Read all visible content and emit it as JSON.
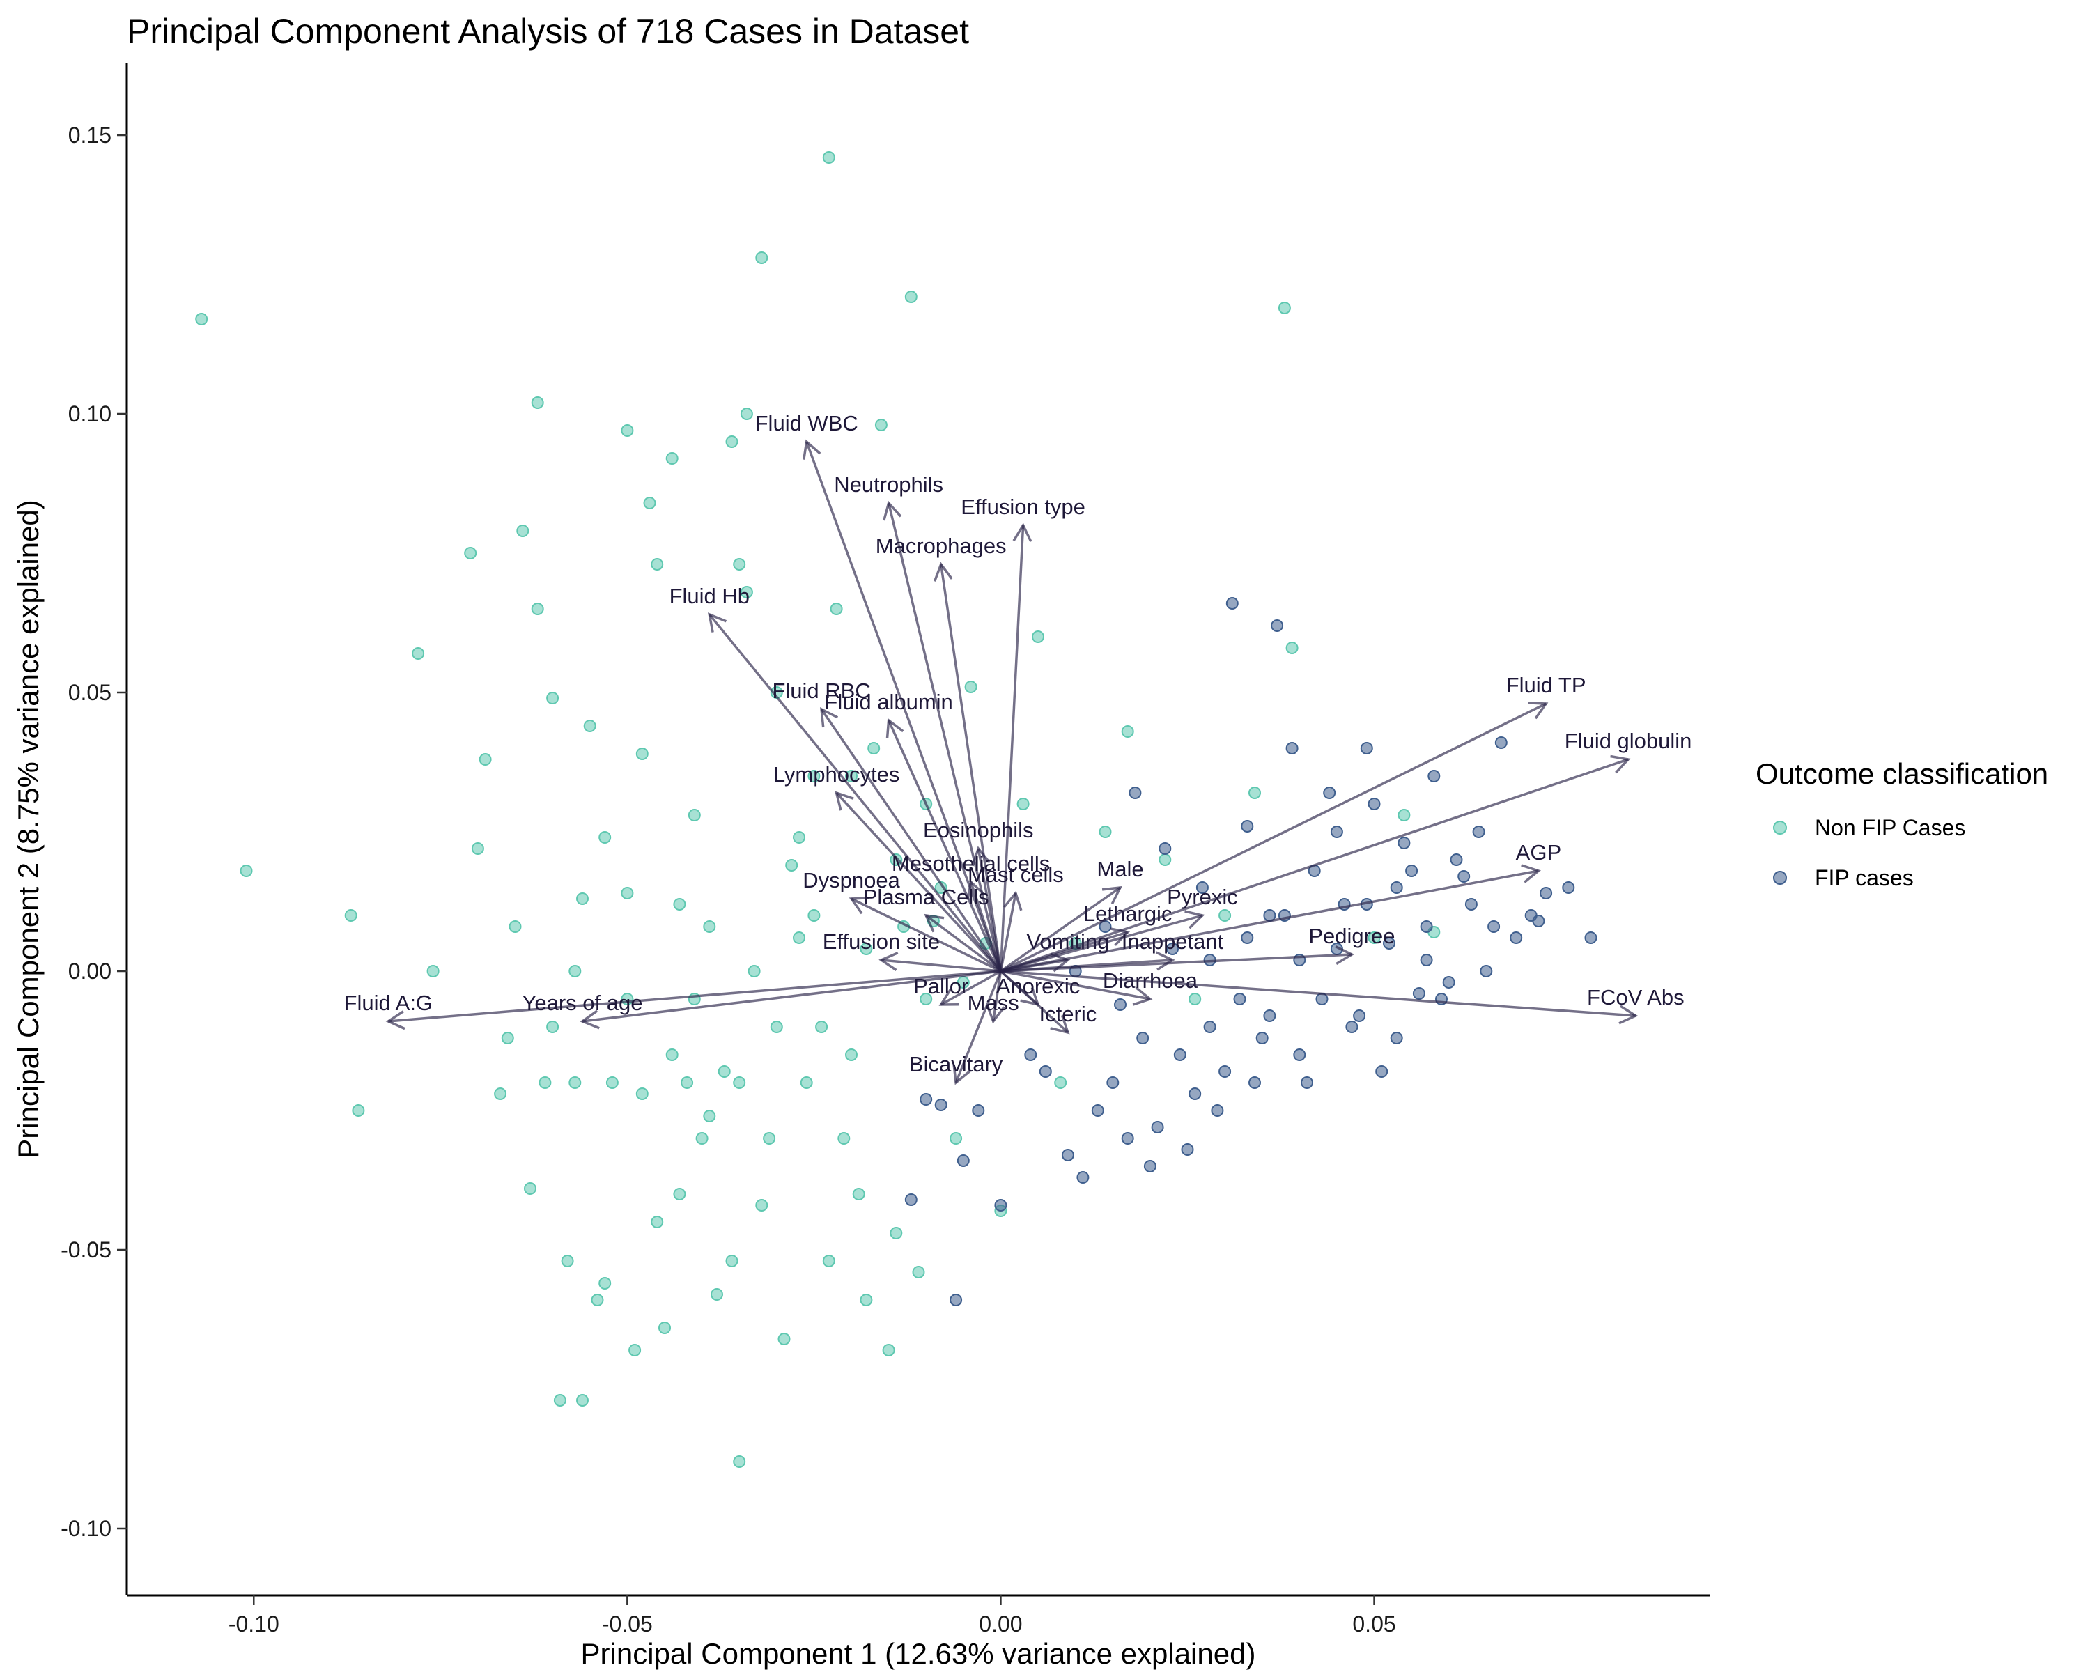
{
  "chart_data": {
    "type": "scatter",
    "subtype": "pca-biplot",
    "title": "Principal Component Analysis of 718 Cases in Dataset",
    "xlabel": "Principal Component 1 (12.63% variance explained)",
    "ylabel": "Principal Component 2 (8.75% variance explained)",
    "xlim": [
      -0.117,
      0.095
    ],
    "ylim": [
      -0.112,
      0.163
    ],
    "x_ticks": [
      -0.1,
      -0.05,
      0.0,
      0.05
    ],
    "x_tick_labels": [
      "-0.10",
      "-0.05",
      "0.00",
      "0.05"
    ],
    "y_ticks": [
      -0.1,
      -0.05,
      0.0,
      0.05,
      0.1,
      0.15
    ],
    "y_tick_labels": [
      "-0.10",
      "-0.05",
      "0.00",
      "0.05",
      "0.10",
      "0.15"
    ],
    "grid": false,
    "legend": {
      "title": "Outcome classification",
      "position": "right",
      "entries": [
        {
          "label": "Non FIP Cases",
          "color": "#5ec8b0"
        },
        {
          "label": "FIP cases",
          "color": "#3f5f8e"
        }
      ]
    },
    "arrow_color": "#2a2448",
    "series": [
      {
        "name": "Non FIP Cases",
        "color": "#5ec8b0",
        "points": [
          [
            -0.107,
            0.117
          ],
          [
            -0.101,
            0.018
          ],
          [
            -0.087,
            0.01
          ],
          [
            -0.086,
            -0.025
          ],
          [
            -0.078,
            0.057
          ],
          [
            -0.076,
            0.0
          ],
          [
            -0.071,
            0.075
          ],
          [
            -0.07,
            0.022
          ],
          [
            -0.069,
            0.038
          ],
          [
            -0.067,
            -0.022
          ],
          [
            -0.066,
            -0.012
          ],
          [
            -0.065,
            0.008
          ],
          [
            -0.064,
            0.079
          ],
          [
            -0.063,
            -0.039
          ],
          [
            -0.062,
            0.102
          ],
          [
            -0.062,
            0.065
          ],
          [
            -0.061,
            -0.02
          ],
          [
            -0.06,
            0.049
          ],
          [
            -0.06,
            -0.01
          ],
          [
            -0.059,
            -0.077
          ],
          [
            -0.058,
            -0.052
          ],
          [
            -0.057,
            0.0
          ],
          [
            -0.056,
            -0.077
          ],
          [
            -0.056,
            0.013
          ],
          [
            -0.055,
            0.044
          ],
          [
            -0.054,
            -0.059
          ],
          [
            -0.053,
            0.024
          ],
          [
            -0.052,
            -0.02
          ],
          [
            -0.05,
            0.097
          ],
          [
            -0.05,
            -0.005
          ],
          [
            -0.049,
            -0.068
          ],
          [
            -0.048,
            0.039
          ],
          [
            -0.047,
            0.084
          ],
          [
            -0.046,
            0.073
          ],
          [
            -0.046,
            -0.045
          ],
          [
            -0.045,
            -0.064
          ],
          [
            -0.044,
            -0.015
          ],
          [
            -0.043,
            0.012
          ],
          [
            -0.042,
            -0.02
          ],
          [
            -0.041,
            0.028
          ],
          [
            -0.04,
            -0.03
          ],
          [
            -0.039,
            0.008
          ],
          [
            -0.038,
            -0.058
          ],
          [
            -0.037,
            -0.018
          ],
          [
            -0.036,
            -0.052
          ],
          [
            -0.035,
            0.073
          ],
          [
            -0.035,
            -0.088
          ],
          [
            -0.034,
            0.068
          ],
          [
            -0.033,
            0.0
          ],
          [
            -0.032,
            0.128
          ],
          [
            -0.031,
            -0.03
          ],
          [
            -0.03,
            0.05
          ],
          [
            -0.029,
            -0.066
          ],
          [
            -0.028,
            0.019
          ],
          [
            -0.027,
            0.024
          ],
          [
            -0.026,
            -0.02
          ],
          [
            -0.025,
            0.01
          ],
          [
            -0.024,
            -0.01
          ],
          [
            -0.023,
            0.146
          ],
          [
            -0.022,
            0.065
          ],
          [
            -0.021,
            -0.03
          ],
          [
            -0.02,
            0.035
          ],
          [
            -0.019,
            -0.04
          ],
          [
            -0.018,
            -0.059
          ],
          [
            -0.017,
            0.04
          ],
          [
            -0.016,
            0.098
          ],
          [
            -0.015,
            -0.068
          ],
          [
            -0.014,
            0.02
          ],
          [
            -0.013,
            0.008
          ],
          [
            -0.012,
            0.121
          ],
          [
            -0.011,
            -0.054
          ],
          [
            -0.01,
            0.03
          ],
          [
            -0.008,
            0.015
          ],
          [
            -0.006,
            -0.03
          ],
          [
            -0.004,
            0.051
          ],
          [
            -0.002,
            0.005
          ],
          [
            0.0,
            -0.043
          ],
          [
            0.003,
            0.03
          ],
          [
            0.005,
            0.06
          ],
          [
            0.008,
            -0.02
          ],
          [
            0.01,
            0.005
          ],
          [
            0.014,
            0.025
          ],
          [
            0.017,
            0.043
          ],
          [
            0.022,
            0.02
          ],
          [
            0.026,
            -0.005
          ],
          [
            0.03,
            0.01
          ],
          [
            0.034,
            0.032
          ],
          [
            0.038,
            0.119
          ],
          [
            0.039,
            0.058
          ],
          [
            0.05,
            0.006
          ],
          [
            0.054,
            0.028
          ],
          [
            0.058,
            0.007
          ],
          [
            -0.034,
            0.1
          ],
          [
            -0.036,
            0.095
          ],
          [
            -0.044,
            0.092
          ],
          [
            -0.053,
            -0.056
          ],
          [
            -0.057,
            -0.02
          ],
          [
            -0.041,
            -0.005
          ],
          [
            -0.03,
            -0.01
          ],
          [
            -0.027,
            0.006
          ],
          [
            -0.018,
            0.004
          ],
          [
            -0.009,
            0.009
          ],
          [
            -0.005,
            -0.002
          ],
          [
            -0.048,
            -0.022
          ],
          [
            -0.039,
            -0.026
          ],
          [
            -0.032,
            -0.042
          ],
          [
            -0.023,
            -0.052
          ],
          [
            -0.014,
            -0.047
          ],
          [
            -0.05,
            0.014
          ],
          [
            -0.043,
            -0.04
          ],
          [
            -0.035,
            -0.02
          ],
          [
            -0.025,
            0.035
          ],
          [
            -0.02,
            -0.015
          ],
          [
            -0.01,
            -0.005
          ]
        ]
      },
      {
        "name": "FIP cases",
        "color": "#3f5f8e",
        "points": [
          [
            -0.012,
            -0.041
          ],
          [
            -0.01,
            -0.023
          ],
          [
            -0.008,
            -0.024
          ],
          [
            -0.006,
            -0.059
          ],
          [
            -0.005,
            -0.034
          ],
          [
            -0.003,
            -0.025
          ],
          [
            0.0,
            -0.042
          ],
          [
            0.004,
            -0.015
          ],
          [
            0.006,
            -0.018
          ],
          [
            0.009,
            -0.033
          ],
          [
            0.011,
            -0.037
          ],
          [
            0.013,
            -0.025
          ],
          [
            0.015,
            -0.02
          ],
          [
            0.017,
            -0.03
          ],
          [
            0.019,
            -0.012
          ],
          [
            0.021,
            -0.028
          ],
          [
            0.024,
            -0.015
          ],
          [
            0.026,
            -0.022
          ],
          [
            0.028,
            -0.01
          ],
          [
            0.03,
            -0.018
          ],
          [
            0.031,
            0.066
          ],
          [
            0.032,
            -0.005
          ],
          [
            0.034,
            -0.02
          ],
          [
            0.036,
            -0.008
          ],
          [
            0.037,
            0.062
          ],
          [
            0.038,
            0.01
          ],
          [
            0.04,
            -0.015
          ],
          [
            0.042,
            0.018
          ],
          [
            0.043,
            -0.005
          ],
          [
            0.045,
            0.025
          ],
          [
            0.046,
            0.012
          ],
          [
            0.048,
            -0.008
          ],
          [
            0.05,
            0.03
          ],
          [
            0.052,
            0.005
          ],
          [
            0.053,
            -0.012
          ],
          [
            0.055,
            0.018
          ],
          [
            0.057,
            0.008
          ],
          [
            0.059,
            -0.005
          ],
          [
            0.061,
            0.02
          ],
          [
            0.063,
            0.012
          ],
          [
            0.065,
            0.0
          ],
          [
            0.067,
            0.041
          ],
          [
            0.069,
            0.006
          ],
          [
            0.071,
            0.01
          ],
          [
            0.073,
            0.014
          ],
          [
            0.076,
            0.015
          ],
          [
            0.079,
            0.006
          ],
          [
            0.018,
            0.032
          ],
          [
            0.022,
            0.022
          ],
          [
            0.027,
            0.015
          ],
          [
            0.033,
            0.026
          ],
          [
            0.039,
            0.04
          ],
          [
            0.044,
            0.032
          ],
          [
            0.049,
            0.04
          ],
          [
            0.054,
            0.023
          ],
          [
            0.058,
            0.035
          ],
          [
            0.062,
            0.017
          ],
          [
            0.066,
            0.008
          ],
          [
            0.02,
            -0.035
          ],
          [
            0.025,
            -0.032
          ],
          [
            0.029,
            -0.025
          ],
          [
            0.035,
            -0.012
          ],
          [
            0.041,
            -0.02
          ],
          [
            0.047,
            -0.01
          ],
          [
            0.051,
            -0.018
          ],
          [
            0.056,
            -0.004
          ],
          [
            0.06,
            -0.002
          ],
          [
            0.01,
            0.0
          ],
          [
            0.014,
            0.008
          ],
          [
            0.016,
            -0.006
          ],
          [
            0.023,
            0.004
          ],
          [
            0.028,
            0.002
          ],
          [
            0.033,
            0.006
          ],
          [
            0.036,
            0.01
          ],
          [
            0.04,
            0.002
          ],
          [
            0.045,
            0.004
          ],
          [
            0.049,
            0.012
          ],
          [
            0.053,
            0.015
          ],
          [
            0.057,
            0.002
          ],
          [
            0.064,
            0.025
          ],
          [
            0.072,
            0.009
          ]
        ]
      }
    ],
    "loadings": [
      {
        "label": "Fluid A:G",
        "x": -0.082,
        "y": -0.009
      },
      {
        "label": "Years of age",
        "x": -0.056,
        "y": -0.009
      },
      {
        "label": "Fluid WBC",
        "x": -0.026,
        "y": 0.095
      },
      {
        "label": "Neutrophils",
        "x": -0.015,
        "y": 0.084
      },
      {
        "label": "Effusion type",
        "x": 0.003,
        "y": 0.08
      },
      {
        "label": "Macrophages",
        "x": -0.008,
        "y": 0.073
      },
      {
        "label": "Fluid Hb",
        "x": -0.039,
        "y": 0.064
      },
      {
        "label": "Fluid RBC",
        "x": -0.024,
        "y": 0.047
      },
      {
        "label": "Fluid albumin",
        "x": -0.015,
        "y": 0.045
      },
      {
        "label": "Lymphocytes",
        "x": -0.022,
        "y": 0.032
      },
      {
        "label": "Eosinophils",
        "x": -0.003,
        "y": 0.022
      },
      {
        "label": "Mast cells",
        "x": 0.002,
        "y": 0.014
      },
      {
        "label": "Mesothelial cells",
        "x": -0.004,
        "y": 0.016
      },
      {
        "label": "Dyspnoea",
        "x": -0.02,
        "y": 0.013
      },
      {
        "label": "Plasma Cells",
        "x": -0.01,
        "y": 0.01
      },
      {
        "label": "Effusion site",
        "x": -0.016,
        "y": 0.002
      },
      {
        "label": "Pallor",
        "x": -0.008,
        "y": -0.006
      },
      {
        "label": "Mass",
        "x": -0.001,
        "y": -0.009
      },
      {
        "label": "Bicavitary",
        "x": -0.006,
        "y": -0.02
      },
      {
        "label": "Vomiting",
        "x": 0.009,
        "y": 0.002
      },
      {
        "label": "Anorexic",
        "x": 0.005,
        "y": -0.006
      },
      {
        "label": "Icteric",
        "x": 0.009,
        "y": -0.011
      },
      {
        "label": "Male",
        "x": 0.016,
        "y": 0.015
      },
      {
        "label": "Lethargic",
        "x": 0.017,
        "y": 0.007
      },
      {
        "label": "Pyrexic",
        "x": 0.027,
        "y": 0.01
      },
      {
        "label": "Inappetant",
        "x": 0.023,
        "y": 0.002
      },
      {
        "label": "Diarrhoea",
        "x": 0.02,
        "y": -0.005
      },
      {
        "label": "Pedigree",
        "x": 0.047,
        "y": 0.003
      },
      {
        "label": "Fluid TP",
        "x": 0.073,
        "y": 0.048
      },
      {
        "label": "Fluid globulin",
        "x": 0.084,
        "y": 0.038
      },
      {
        "label": "AGP",
        "x": 0.072,
        "y": 0.018
      },
      {
        "label": "FCoV Abs",
        "x": 0.085,
        "y": -0.008
      }
    ]
  }
}
